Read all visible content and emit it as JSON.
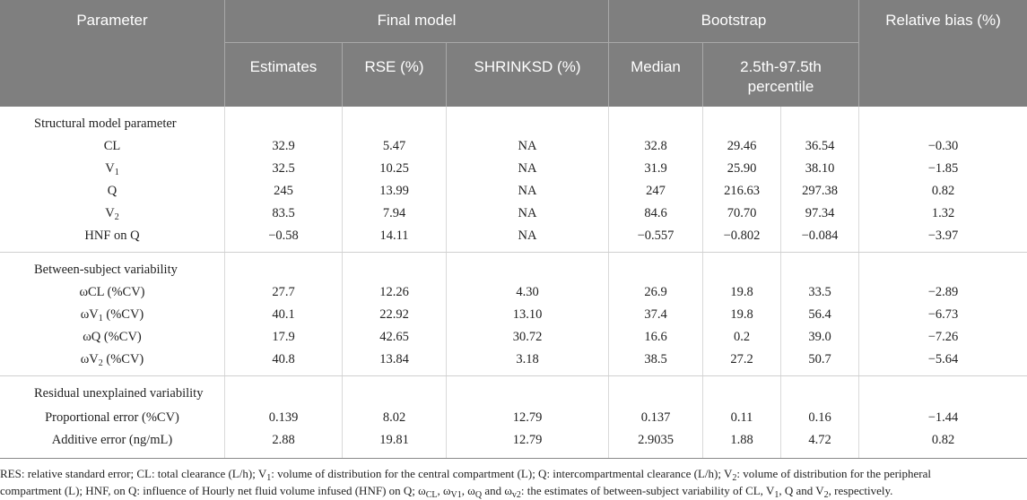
{
  "header": {
    "parameter": "Parameter",
    "final_model": "Final model",
    "bootstrap": "Bootstrap",
    "relative_bias": "Relative bias (%)",
    "estimates": "Estimates",
    "rse": "RSE (%)",
    "shrinksd": "SHRINKSD (%)",
    "median": "Median",
    "percentile_line1": "2.5th-97.5th",
    "percentile_line2": "percentile"
  },
  "sections": [
    {
      "title": "Structural model parameter",
      "rows": [
        {
          "label": "CL",
          "sub": "",
          "suffix": "",
          "est": "32.9",
          "rse": "5.47",
          "shrink": "NA",
          "median": "32.8",
          "lo": "29.46",
          "hi": "36.54",
          "bias": "−0.30"
        },
        {
          "label": "V",
          "sub": "1",
          "suffix": "",
          "est": "32.5",
          "rse": "10.25",
          "shrink": "NA",
          "median": "31.9",
          "lo": "25.90",
          "hi": "38.10",
          "bias": "−1.85"
        },
        {
          "label": "Q",
          "sub": "",
          "suffix": "",
          "est": "245",
          "rse": "13.99",
          "shrink": "NA",
          "median": "247",
          "lo": "216.63",
          "hi": "297.38",
          "bias": "0.82"
        },
        {
          "label": "V",
          "sub": "2",
          "suffix": "",
          "est": "83.5",
          "rse": "7.94",
          "shrink": "NA",
          "median": "84.6",
          "lo": "70.70",
          "hi": "97.34",
          "bias": "1.32"
        },
        {
          "label": "HNF on Q",
          "sub": "",
          "suffix": "",
          "est": "−0.58",
          "rse": "14.11",
          "shrink": "NA",
          "median": "−0.557",
          "lo": "−0.802",
          "hi": "−0.084",
          "bias": "−3.97"
        }
      ]
    },
    {
      "title": "Between-subject variability",
      "rows": [
        {
          "label": "ωCL (%CV)",
          "sub": "",
          "suffix": "",
          "est": "27.7",
          "rse": "12.26",
          "shrink": "4.30",
          "median": "26.9",
          "lo": "19.8",
          "hi": "33.5",
          "bias": "−2.89"
        },
        {
          "label": "ωV",
          "sub": "1",
          "suffix": " (%CV)",
          "est": "40.1",
          "rse": "22.92",
          "shrink": "13.10",
          "median": "37.4",
          "lo": "19.8",
          "hi": "56.4",
          "bias": "−6.73"
        },
        {
          "label": "ωQ (%CV)",
          "sub": "",
          "suffix": "",
          "est": "17.9",
          "rse": "42.65",
          "shrink": "30.72",
          "median": "16.6",
          "lo": "0.2",
          "hi": "39.0",
          "bias": "−7.26"
        },
        {
          "label": "ωV",
          "sub": "2",
          "suffix": " (%CV)",
          "est": "40.8",
          "rse": "13.84",
          "shrink": "3.18",
          "median": "38.5",
          "lo": "27.2",
          "hi": "50.7",
          "bias": "−5.64"
        }
      ]
    },
    {
      "title": "Residual unexplained variability",
      "rows": [
        {
          "label": "Proportional error (%CV)",
          "sub": "",
          "suffix": "",
          "est": "0.139",
          "rse": "8.02",
          "shrink": "12.79",
          "median": "0.137",
          "lo": "0.11",
          "hi": "0.16",
          "bias": "−1.44"
        },
        {
          "label": "Additive error (ng/mL)",
          "sub": "",
          "suffix": "",
          "est": "2.88",
          "rse": "19.81",
          "shrink": "12.79",
          "median": "2.9035",
          "lo": "1.88",
          "hi": "4.72",
          "bias": "0.82"
        }
      ]
    }
  ],
  "footnote": {
    "line1_a": "RES: relative standard error; CL: total clearance (L/h); V",
    "line1_sub1": "1",
    "line1_b": ": volume of distribution for the central compartment (L); Q: intercompartmental clearance (L/h); V",
    "line1_sub2": "2",
    "line1_c": ": volume of distribution for the peripheral",
    "line2_a": "compartment (L); HNF, on Q: influence of Hourly net fluid volume infused (HNF) on Q; ω",
    "line2_sub1": "CL",
    "line2_b": ", ω",
    "line2_sub2": "V1",
    "line2_c": ", ω",
    "line2_sub3": "Q",
    "line2_d": " and ω",
    "line2_sub4": "v2",
    "line2_e": ": the estimates of between-subject variability of CL, V",
    "line2_sub5": "1",
    "line2_f": ", Q and V",
    "line2_sub6": "2",
    "line2_g": ", respectively."
  }
}
